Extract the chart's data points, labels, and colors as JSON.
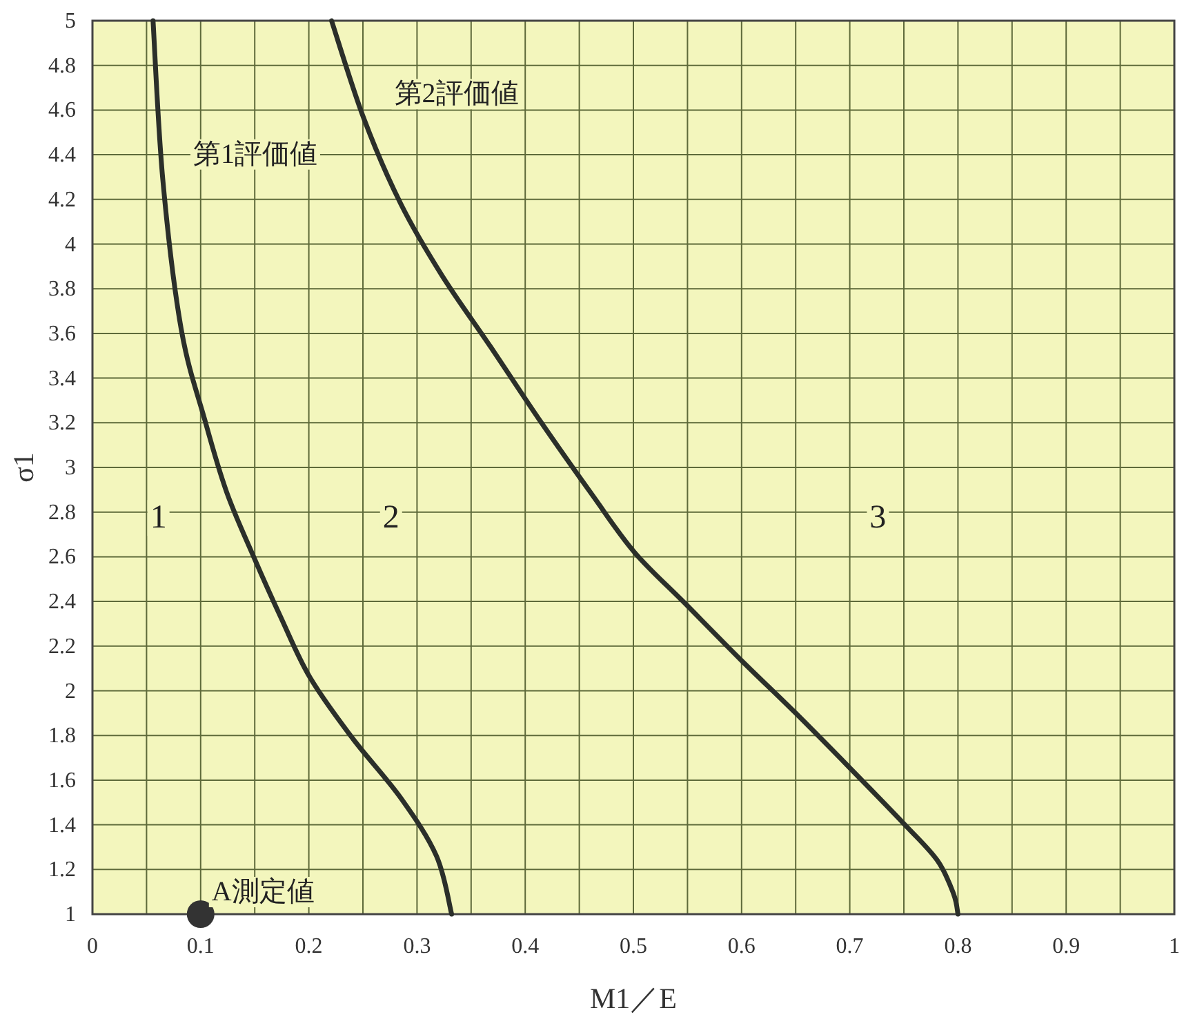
{
  "chart_data": {
    "type": "line",
    "xlabel": "M1／E",
    "ylabel": "σ1",
    "xlim": [
      0,
      1
    ],
    "ylim": [
      1,
      5
    ],
    "xticks": [
      0,
      {
        "value": 0.05,
        "label": null
      },
      0.1,
      {
        "value": 0.15,
        "label": null
      },
      0.2,
      {
        "value": 0.25,
        "label": null
      },
      0.3,
      {
        "value": 0.35,
        "label": null
      },
      0.4,
      {
        "value": 0.45,
        "label": null
      },
      0.5,
      {
        "value": 0.55,
        "label": null
      },
      0.6,
      {
        "value": 0.65,
        "label": null
      },
      0.7,
      {
        "value": 0.75,
        "label": null
      },
      0.8,
      {
        "value": 0.85,
        "label": null
      },
      0.9,
      {
        "value": 0.95,
        "label": null
      },
      1
    ],
    "yticks": [
      1,
      1.2,
      1.4,
      1.6,
      1.8,
      2,
      2.2,
      2.4,
      2.6,
      2.8,
      3,
      3.2,
      3.4,
      3.6,
      3.8,
      4,
      4.2,
      4.4,
      4.6,
      4.8,
      5
    ],
    "grid": true,
    "marker": "none",
    "line_style": "solid",
    "series": [
      {
        "name": "第1評価値",
        "color": "#2b2f2a",
        "x": [
          0.056,
          0.065,
          0.082,
          0.104,
          0.124,
          0.149,
          0.174,
          0.201,
          0.24,
          0.285,
          0.318,
          0.332
        ],
        "values": [
          5,
          4.29,
          3.62,
          3.21,
          2.89,
          2.6,
          2.33,
          2.06,
          1.79,
          1.52,
          1.26,
          1
        ]
      },
      {
        "name": "第2評価値",
        "color": "#2b2f2a",
        "x": [
          0.221,
          0.251,
          0.285,
          0.323,
          0.368,
          0.415,
          0.463,
          0.501,
          0.548,
          0.599,
          0.65,
          0.701,
          0.751,
          0.781,
          0.796,
          0.8
        ],
        "values": [
          5,
          4.56,
          4.18,
          3.86,
          3.54,
          3.2,
          2.87,
          2.62,
          2.39,
          2.14,
          1.9,
          1.65,
          1.4,
          1.24,
          1.09,
          1
        ]
      },
      {
        "name": "A測定値",
        "type": "scatter",
        "marker": "circle",
        "color": "#333333",
        "x": [
          0.1
        ],
        "values": [
          1
        ]
      }
    ],
    "annotations": [
      "1",
      "2",
      "3"
    ]
  }
}
